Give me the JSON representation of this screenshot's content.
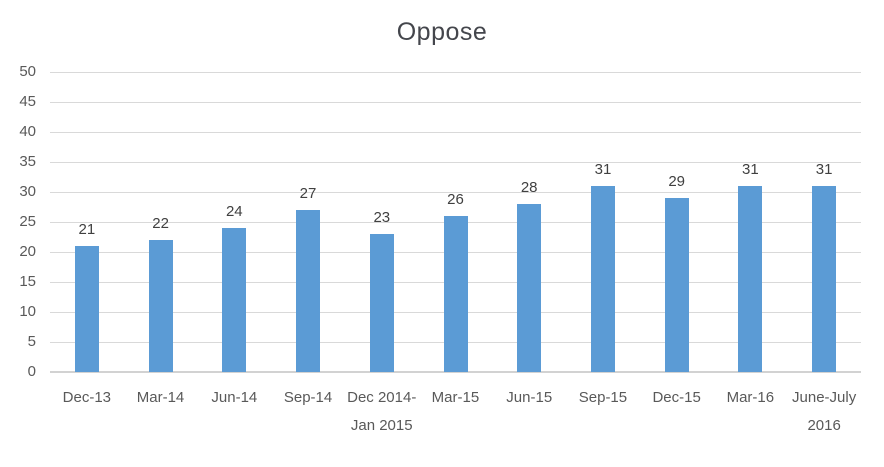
{
  "chart_data": {
    "type": "bar",
    "title": "Oppose",
    "categories": [
      "Dec-13",
      "Mar-14",
      "Jun-14",
      "Sep-14",
      "Dec 2014-Jan 2015",
      "Mar-15",
      "Jun-15",
      "Sep-15",
      "Dec-15",
      "Mar-16",
      "June-July 2016"
    ],
    "values": [
      21,
      22,
      24,
      27,
      23,
      26,
      28,
      31,
      29,
      31,
      31
    ],
    "y_ticks": [
      0,
      5,
      10,
      15,
      20,
      25,
      30,
      35,
      40,
      45,
      50
    ],
    "ylim": [
      0,
      50
    ],
    "xlabel": "",
    "ylabel": "",
    "grid": true,
    "legend_position": "none",
    "data_labels_shown": true,
    "colors": {
      "bar": "#5B9BD5",
      "gridline": "#D9D9D9",
      "axis_line": "#D2D2D2",
      "axis_tick_label": "#595959",
      "data_label": "#404040",
      "title": "#44464C",
      "background": "#FFFFFF"
    }
  }
}
